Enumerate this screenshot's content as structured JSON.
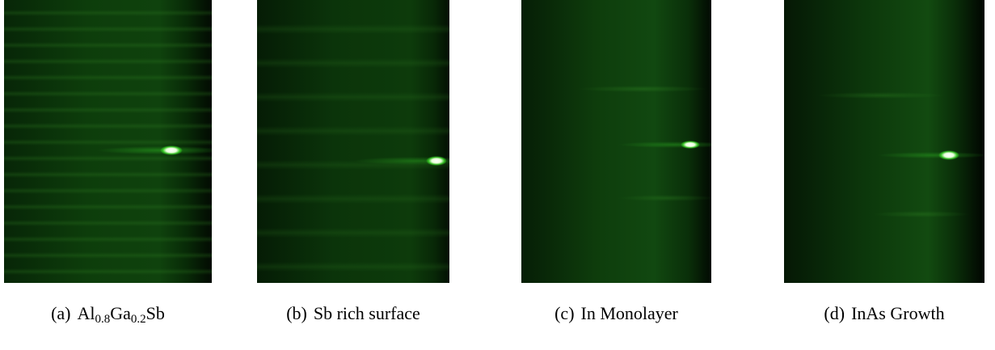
{
  "figures": [
    {
      "label": "(a)",
      "caption": [
        {
          "text": "Al"
        },
        {
          "text": "0.8",
          "sub": true
        },
        {
          "text": "Ga"
        },
        {
          "text": "0.2",
          "sub": true
        },
        {
          "text": "Sb"
        }
      ]
    },
    {
      "label": "(b)",
      "caption": [
        {
          "text": "Sb rich surface"
        }
      ]
    },
    {
      "label": "(c)",
      "caption": [
        {
          "text": "In Monolayer"
        }
      ]
    },
    {
      "label": "(d)",
      "caption": [
        {
          "text": "InAs Growth"
        }
      ]
    }
  ]
}
